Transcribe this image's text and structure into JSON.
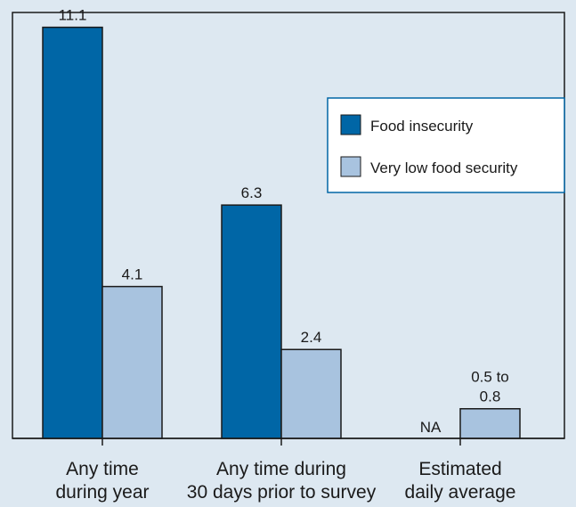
{
  "chart_data": {
    "type": "bar",
    "categories": [
      [
        "Any time",
        "during year"
      ],
      [
        "Any time during",
        "30 days prior to survey"
      ],
      [
        "Estimated",
        "daily average"
      ]
    ],
    "series": [
      {
        "name": "Food insecurity",
        "color": "#0066a6",
        "values": [
          11.1,
          6.3,
          null
        ],
        "labels": [
          [
            "11.1"
          ],
          [
            "6.3"
          ],
          [
            "NA"
          ]
        ]
      },
      {
        "name": "Very low food security",
        "color": "#a8c3df",
        "values": [
          4.1,
          2.4,
          0.8
        ],
        "labels": [
          [
            "4.1"
          ],
          [
            "2.4"
          ],
          [
            "0.5 to",
            "0.8"
          ]
        ]
      }
    ],
    "ylim": [
      0,
      11.5
    ],
    "grid": false,
    "legend": "top-right"
  }
}
